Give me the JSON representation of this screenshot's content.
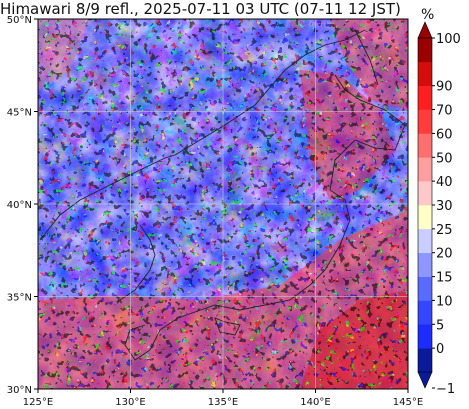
{
  "title": "Himawari 8/9 refl., 2025-07-11 03 UTC (07-11 12 JST)",
  "colorbar": {
    "unit": "%",
    "levels": [
      -1,
      0,
      5,
      10,
      15,
      20,
      25,
      30,
      40,
      50,
      60,
      70,
      90,
      100
    ],
    "colors": [
      "#0a1a9a",
      "#1c2bff",
      "#3546ff",
      "#5a6cff",
      "#8d97ff",
      "#c9cdff",
      "#ffffc8",
      "#ffc8c8",
      "#ff9e9e",
      "#ff6f6f",
      "#ff3d3d",
      "#ff1f1f",
      "#d40c0c",
      "#9a0000"
    ],
    "labels": [
      "−1",
      "0",
      "5",
      "10",
      "15",
      "20",
      "25",
      "30",
      "40",
      "50",
      "60",
      "70",
      "90",
      "100"
    ]
  },
  "map": {
    "lon_range": [
      125,
      145
    ],
    "lat_range": [
      30,
      50
    ],
    "lon_ticks": [
      125,
      130,
      135,
      140,
      145
    ],
    "lat_ticks": [
      30,
      35,
      40,
      45,
      50
    ],
    "lon_labels": [
      "125°E",
      "130°E",
      "135°E",
      "140°E",
      "145°E"
    ],
    "lat_labels": [
      "30°N",
      "35°N",
      "40°N",
      "45°N",
      "50°N"
    ],
    "gridlines": true
  }
}
